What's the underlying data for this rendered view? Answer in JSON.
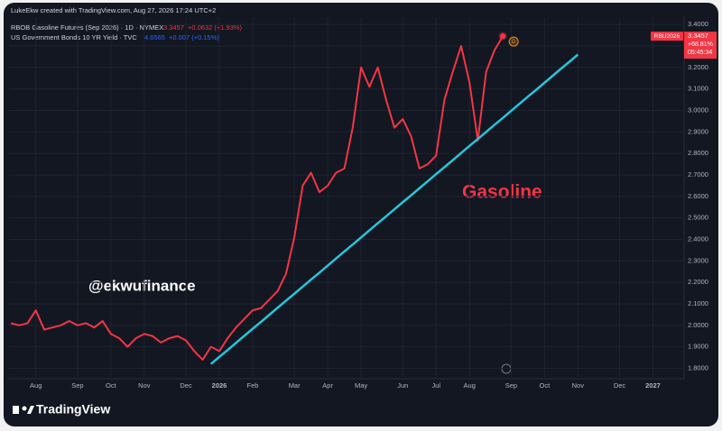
{
  "chart_data": {
    "type": "line",
    "header": "LukeEkw created with TradingView.com, Aug 27, 2026 17:24 UTC+2",
    "categories": [
      null,
      null,
      null,
      "Aug",
      null,
      null,
      null,
      null,
      "Sep",
      null,
      null,
      null,
      "Oct",
      null,
      null,
      null,
      "Nov",
      null,
      null,
      null,
      null,
      "Dec",
      null,
      null,
      null,
      "2026",
      null,
      null,
      null,
      "Feb",
      null,
      null,
      null,
      null,
      "Mar",
      null,
      null,
      null,
      "Apr",
      null,
      null,
      null,
      "May",
      null,
      null,
      null,
      null,
      "Jun",
      null,
      null,
      null,
      "Jul",
      null,
      null,
      null,
      "Aug",
      null,
      null,
      null,
      null,
      "Sep",
      null,
      null,
      null,
      "Oct",
      null,
      null,
      null,
      "Nov",
      null,
      null,
      null,
      null,
      "Dec",
      null,
      null,
      null,
      "2027",
      null,
      null,
      null
    ],
    "series": [
      {
        "name": "RBOB Gasoline Futures (Sep 2026) · 1D · NYMEX",
        "color": "#f23645",
        "last_value": 3.3457,
        "change": "+0.0632 (+1.93%)",
        "values": [
          2.01,
          2.0,
          2.01,
          2.07,
          1.98,
          1.99,
          2.0,
          2.02,
          2.0,
          2.01,
          1.99,
          2.02,
          1.96,
          1.94,
          1.9,
          1.94,
          1.96,
          1.95,
          1.92,
          1.94,
          1.95,
          1.93,
          1.88,
          1.84,
          1.9,
          1.88,
          1.94,
          1.99,
          2.03,
          2.07,
          2.08,
          2.12,
          2.16,
          2.24,
          2.41,
          2.65,
          2.71,
          2.62,
          2.65,
          2.71,
          2.73,
          2.92,
          3.2,
          3.11,
          3.2,
          3.05,
          2.92,
          2.96,
          2.88,
          2.73,
          2.75,
          2.79,
          3.05,
          3.18,
          3.3,
          3.13,
          2.86,
          3.18,
          3.28,
          3.3457,
          null,
          null,
          null,
          null,
          null,
          null,
          null,
          null,
          null,
          null,
          null,
          null,
          null,
          null,
          null,
          null,
          null,
          null,
          null,
          null,
          null
        ]
      }
    ],
    "overlay": {
      "name": "US Government Bonds 10 YR Yield · TVC",
      "value": 4.6565,
      "change": "+0.007 (+0.15%)",
      "color": "#2962ff"
    },
    "trendline": {
      "color": "#26c6da",
      "values": [
        null,
        null,
        null,
        null,
        null,
        null,
        null,
        null,
        null,
        null,
        null,
        null,
        null,
        null,
        null,
        null,
        null,
        null,
        null,
        null,
        null,
        null,
        null,
        null,
        1.82,
        1.853,
        1.885,
        1.918,
        1.951,
        1.984,
        2.016,
        2.049,
        2.082,
        2.115,
        2.147,
        2.18,
        2.213,
        2.245,
        2.278,
        2.311,
        2.344,
        2.376,
        2.409,
        2.442,
        2.475,
        2.507,
        2.54,
        2.573,
        2.605,
        2.638,
        2.671,
        2.704,
        2.736,
        2.769,
        2.802,
        2.835,
        2.867,
        2.9,
        2.933,
        2.965,
        2.998,
        3.031,
        3.064,
        3.096,
        3.129,
        3.162,
        3.195,
        3.227,
        3.26,
        null,
        null,
        null,
        null,
        null,
        null,
        null,
        null,
        null,
        null,
        null,
        null
      ]
    },
    "price_tag": {
      "symbol": "RBU2026",
      "value": 3.3457,
      "change": "+68.81%",
      "countdown": "05:45:34"
    },
    "annotations": [
      "Gasoline",
      "@ekwufinance"
    ],
    "badge": "D",
    "brand": "TradingView",
    "ylim": [
      1.76,
      3.43
    ],
    "yticks": [
      {
        "value": 1.8,
        "label": "1.8000"
      },
      {
        "value": 1.9,
        "label": "1.9000"
      },
      {
        "value": 2.0,
        "label": "2.0000"
      },
      {
        "value": 2.1,
        "label": "2.1000"
      },
      {
        "value": 2.2,
        "label": "2.2000"
      },
      {
        "value": 2.3,
        "label": "2.3000"
      },
      {
        "value": 2.4,
        "label": "2.4000"
      },
      {
        "value": 2.5,
        "label": "2.5000"
      },
      {
        "value": 2.6,
        "label": "2.6000"
      },
      {
        "value": 2.7,
        "label": "2.7000"
      },
      {
        "value": 2.8,
        "label": "2.8000"
      },
      {
        "value": 2.9,
        "label": "2.9000"
      },
      {
        "value": 3.0,
        "label": "3.0000"
      },
      {
        "value": 3.1,
        "label": "3.1000"
      },
      {
        "value": 3.2,
        "label": "3.2000"
      },
      {
        "value": 3.3,
        "label": "3.3000"
      },
      {
        "value": 3.4,
        "label": "3.4000"
      }
    ],
    "grid": true
  }
}
